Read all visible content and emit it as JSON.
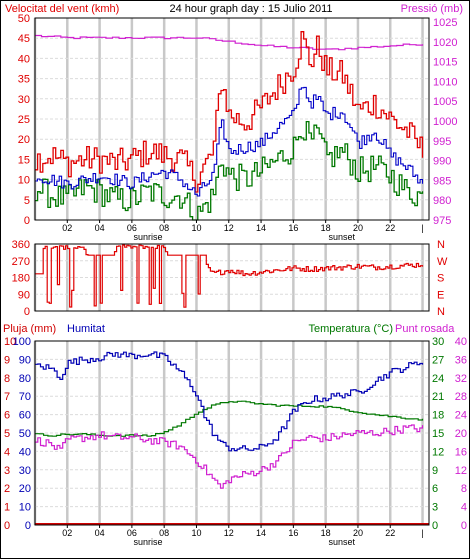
{
  "header": {
    "wind_label": "Velocitat del vent (kmh)",
    "title": "24 hour graph day : 15 Julio 2011",
    "pressure_label": "Pressió (mb)"
  },
  "panel3": {
    "rain_label": "Pluja (mm)",
    "humidity_label": "Humitat",
    "temperature_label": "Temperatura (°C)",
    "dewpoint_label": "Punt rosada"
  },
  "colors": {
    "wind_gust": "#e00000",
    "wind_avg": "#0000c8",
    "wind_min": "#007800",
    "pressure": "#d020d0",
    "direction": "#e00000",
    "rain": "#d00000",
    "humidity": "#0000b4",
    "temperature": "#007800",
    "dewpoint": "#d020d0",
    "grid": "#c8c8c8",
    "marker": "#000000"
  },
  "chart_data": [
    {
      "type": "line",
      "x_ticks": [
        "02",
        "04",
        "06",
        "08",
        "10",
        "12",
        "14",
        "16",
        "18",
        "20",
        "22"
      ],
      "markers": [
        "sunrise",
        "sunset"
      ],
      "xlim": [
        0,
        24.4
      ],
      "left_axis": {
        "label": "Velocitat del vent (kmh)",
        "ylim": [
          0,
          50
        ],
        "ticks": [
          0,
          5,
          10,
          15,
          20,
          25,
          30,
          35,
          40,
          45,
          50
        ]
      },
      "right_axis": {
        "label": "Pressió (mb)",
        "ylim": [
          975,
          1026
        ],
        "ticks": [
          975,
          980,
          985,
          990,
          995,
          1000,
          1005,
          1010,
          1015,
          1020,
          1025
        ]
      },
      "grid": true,
      "series": [
        {
          "axis": "left",
          "x": [
            0,
            1,
            2,
            3,
            4,
            5,
            6,
            7,
            8,
            9,
            10,
            11,
            11.5,
            12,
            13,
            14,
            15,
            16,
            16.5,
            17,
            17.5,
            18,
            19,
            20,
            21,
            22,
            23,
            24
          ],
          "values": [
            15,
            16,
            14,
            15,
            15,
            14,
            15,
            17,
            16,
            15,
            10,
            17,
            35,
            26,
            24,
            28,
            33,
            38,
            45,
            39,
            43,
            37,
            36,
            27,
            29,
            25,
            22,
            17
          ]
        },
        {
          "axis": "left",
          "x": [
            0,
            1,
            2,
            3,
            4,
            5,
            6,
            7,
            8,
            9,
            10,
            11,
            11.5,
            12,
            13,
            14,
            15,
            16,
            16.5,
            17,
            17.5,
            18,
            19,
            20,
            21,
            22,
            23,
            24
          ],
          "values": [
            11,
            10,
            9,
            10,
            11,
            10,
            9,
            11,
            12,
            10,
            6,
            11,
            24,
            17,
            18,
            19,
            23,
            26,
            34,
            29,
            30,
            26,
            27,
            19,
            22,
            16,
            13,
            9
          ]
        },
        {
          "axis": "left",
          "x": [
            0,
            1,
            2,
            3,
            4,
            5,
            6,
            7,
            8,
            9,
            10,
            11,
            11.5,
            12,
            13,
            14,
            15,
            16,
            16.5,
            17,
            17.5,
            18,
            19,
            20,
            21,
            22,
            23,
            24
          ],
          "values": [
            8,
            6,
            5,
            8,
            7,
            5,
            5,
            7,
            6,
            6,
            1,
            6,
            15,
            11,
            10,
            12,
            15,
            18,
            24,
            19,
            21,
            15,
            17,
            12,
            13,
            11,
            7,
            6
          ]
        },
        {
          "axis": "right",
          "x": [
            0,
            2,
            4,
            6,
            8,
            10,
            12,
            14,
            16,
            18,
            20,
            22,
            24
          ],
          "values": [
            1021.5,
            1021,
            1021,
            1021,
            1021,
            1021,
            1020,
            1019,
            1018.5,
            1018,
            1018.5,
            1019,
            1019.5
          ]
        }
      ]
    },
    {
      "type": "line",
      "x_ticks": [],
      "xlim": [
        0,
        24.4
      ],
      "left_axis": {
        "ylim": [
          0,
          360
        ],
        "ticks": [
          0,
          90,
          180,
          270,
          360
        ]
      },
      "right_axis": {
        "labels": [
          "N",
          "W",
          "S",
          "E",
          "N"
        ]
      },
      "grid": true,
      "series": [
        {
          "x": [
            0,
            0.6,
            1,
            2,
            3,
            4,
            5,
            6,
            7,
            8,
            9,
            10,
            11,
            12,
            13,
            14,
            15,
            16,
            17,
            18,
            19,
            20,
            21,
            22,
            23,
            24
          ],
          "values": [
            270,
            340,
            345,
            340,
            345,
            50,
            345,
            345,
            345,
            345,
            60,
            300,
            200,
            220,
            200,
            210,
            220,
            230,
            225,
            230,
            235,
            240,
            235,
            240,
            245,
            250
          ]
        }
      ]
    },
    {
      "type": "line",
      "x_ticks": [
        "02",
        "04",
        "06",
        "08",
        "10",
        "12",
        "14",
        "16",
        "18",
        "20",
        "22"
      ],
      "markers": [
        "sunrise",
        "sunset"
      ],
      "xlim": [
        0,
        24.4
      ],
      "left_axis": {
        "label": "Pluja (mm)",
        "ylim": [
          0,
          10
        ],
        "ticks": [
          0,
          1,
          2,
          3,
          4,
          5,
          6,
          7,
          8,
          9,
          10
        ]
      },
      "left_axis_humidity": {
        "label": "Humitat",
        "ylim": [
          0,
          100
        ],
        "ticks": [
          0,
          10,
          20,
          30,
          40,
          50,
          60,
          70,
          80,
          90,
          100
        ]
      },
      "middle_axis": {
        "label": "Temperatura (°C)",
        "ylim": [
          0,
          30
        ],
        "ticks": [
          0,
          3,
          6,
          9,
          12,
          15,
          18,
          21,
          24,
          27,
          30
        ]
      },
      "right_axis": {
        "label": "Punt rosada",
        "ylim": [
          0,
          40
        ],
        "ticks": [
          0,
          4,
          8,
          12,
          16,
          20,
          24,
          28,
          32,
          36,
          40
        ]
      },
      "grid": true,
      "series": [
        {
          "axis": "left",
          "x": [
            0,
            24
          ],
          "values": [
            0,
            0
          ]
        },
        {
          "axis": "humidity",
          "x": [
            0,
            1,
            1.5,
            2,
            3,
            4,
            5,
            6,
            7,
            8,
            9,
            10,
            10.5,
            11,
            11.5,
            12,
            13,
            14,
            15,
            16,
            17,
            18,
            19,
            20,
            21,
            22,
            23,
            24
          ],
          "values": [
            87,
            85,
            80,
            88,
            90,
            91,
            93,
            92,
            93,
            91,
            83,
            71,
            58,
            50,
            44,
            42,
            41,
            42,
            48,
            62,
            68,
            69,
            71,
            72,
            78,
            83,
            86,
            89
          ]
        },
        {
          "axis": "middle",
          "x": [
            0,
            1,
            2,
            3,
            4,
            5,
            6,
            7,
            8,
            9,
            10,
            11,
            12,
            13,
            14,
            15,
            16,
            17,
            18,
            19,
            20,
            21,
            22,
            23,
            24
          ],
          "values": [
            14.8,
            14.6,
            14.8,
            14.8,
            14.6,
            14.6,
            14.6,
            14.5,
            15.2,
            16.5,
            18.4,
            19.5,
            20.2,
            20,
            19.7,
            19.5,
            19.4,
            19.4,
            19.3,
            18.9,
            18.4,
            18,
            17.7,
            17.4,
            17.2
          ]
        },
        {
          "axis": "right",
          "x": [
            0,
            1,
            1.5,
            2,
            3,
            4,
            5,
            6,
            7,
            8,
            9,
            10,
            10.5,
            11,
            11.5,
            12,
            13,
            14,
            15,
            16,
            17,
            18,
            19,
            20,
            21,
            22,
            23,
            24
          ],
          "values": [
            18.5,
            17.5,
            16,
            18.5,
            19,
            19.5,
            19,
            19,
            18.5,
            18,
            17,
            14,
            12,
            10,
            8,
            10,
            11,
            12,
            14,
            18,
            19,
            18.8,
            19.5,
            20,
            20,
            20.5,
            21,
            21
          ]
        }
      ]
    }
  ]
}
